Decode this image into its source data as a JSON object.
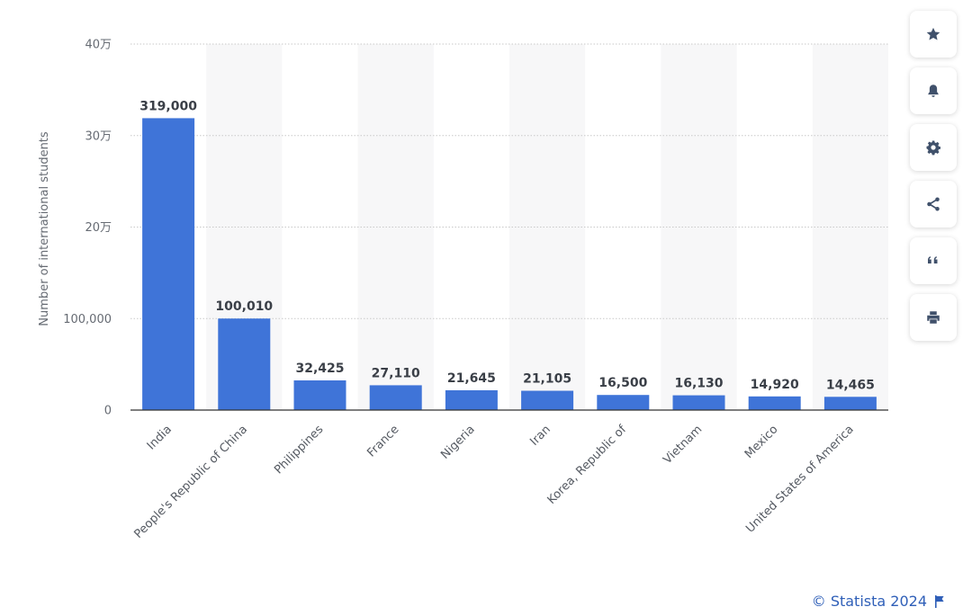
{
  "chart_data": {
    "type": "bar",
    "title": "",
    "xlabel": "",
    "ylabel": "Number of international students",
    "ylim": [
      0,
      400000
    ],
    "yticks": [
      {
        "value": 0,
        "label": "0"
      },
      {
        "value": 100000,
        "label": "100,000"
      },
      {
        "value": 200000,
        "label": "20万"
      },
      {
        "value": 300000,
        "label": "30万"
      },
      {
        "value": 400000,
        "label": "40万"
      }
    ],
    "categories": [
      "India",
      "People's Republic of China",
      "Philippines",
      "France",
      "Nigeria",
      "Iran",
      "Korea, Republic of",
      "Vietnam",
      "Mexico",
      "United States of America"
    ],
    "values": [
      319000,
      100010,
      32425,
      27110,
      21645,
      21105,
      16500,
      16130,
      14920,
      14465
    ],
    "value_labels": [
      "319,000",
      "100,010",
      "32,425",
      "27,110",
      "21,645",
      "21,105",
      "16,500",
      "16,130",
      "14,920",
      "14,465"
    ],
    "bar_color": "#3f74d8",
    "grid": true
  },
  "toolbar": {
    "buttons": [
      {
        "name": "favorite-button",
        "icon": "star-icon"
      },
      {
        "name": "notification-button",
        "icon": "bell-icon"
      },
      {
        "name": "settings-button",
        "icon": "gear-icon"
      },
      {
        "name": "share-button",
        "icon": "share-icon"
      },
      {
        "name": "cite-button",
        "icon": "quote-icon"
      },
      {
        "name": "print-button",
        "icon": "printer-icon"
      }
    ]
  },
  "credit": {
    "text": "© Statista 2024",
    "icon": "flag-icon"
  }
}
